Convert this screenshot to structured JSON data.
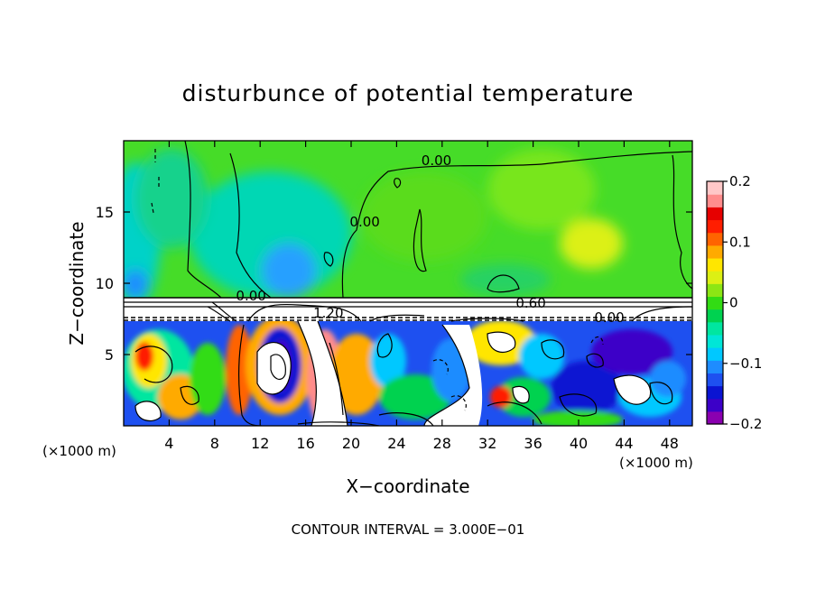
{
  "chart_data": {
    "type": "heatmap",
    "title": "disturbunce of potential temperature",
    "xlabel": "X−coordinate",
    "ylabel": "Z−coordinate",
    "x_unit_left": "(×1000 m)",
    "x_unit_right": "(×1000 m)",
    "footer": "CONTOUR INTERVAL = 3.000E−01",
    "xlim": [
      0,
      50
    ],
    "ylim": [
      0,
      20
    ],
    "x_ticks": [
      4,
      8,
      12,
      16,
      20,
      24,
      28,
      32,
      36,
      40,
      44,
      48
    ],
    "y_ticks": [
      5,
      10,
      15
    ],
    "colorbar": {
      "min": -0.2,
      "max": 0.2,
      "ticks": [
        0.2,
        0.1,
        0,
        -0.1,
        -0.2
      ],
      "tick_labels": [
        "0.2",
        "0.1",
        "0",
        "−0.1",
        "−0.2"
      ],
      "colors": [
        "#8a00b0",
        "#3c00c8",
        "#0a14d2",
        "#1e50f0",
        "#1e8cff",
        "#00c8ff",
        "#00e6d7",
        "#00e6a0",
        "#00d250",
        "#32dc14",
        "#8ce614",
        "#dcf014",
        "#ffe600",
        "#ffaa00",
        "#ff6400",
        "#ff1e00",
        "#e60000",
        "#ff8c8c",
        "#ffc8c8"
      ]
    },
    "contour_labels": [
      {
        "text": "0.00",
        "x": 27.5,
        "z": 18.6
      },
      {
        "text": "0.00",
        "x": 21.2,
        "z": 14.3
      },
      {
        "text": "0.00",
        "x": 11.2,
        "z": 9.1
      },
      {
        "text": "1.20",
        "x": 18.0,
        "z": 7.9
      },
      {
        "text": "0.60",
        "x": 35.8,
        "z": 8.6
      },
      {
        "text": "0.00",
        "x": 42.7,
        "z": 7.6
      }
    ]
  }
}
